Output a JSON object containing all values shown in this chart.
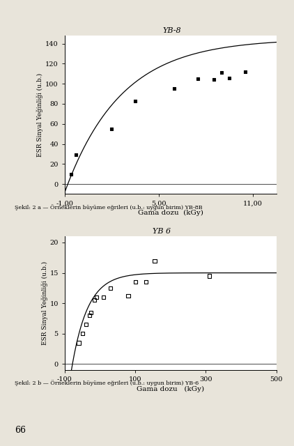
{
  "chart1": {
    "title": "YB-8",
    "xlabel": "Gama dozu  (kGy)",
    "ylabel": "ESR Sinyal Yeğinliği (u.b.)",
    "xlim": [
      -100,
      1250
    ],
    "ylim": [
      -10,
      148
    ],
    "xticks": [
      -100,
      500,
      1100
    ],
    "xticklabels": [
      "-1,00",
      "5,00",
      "11,00"
    ],
    "yticks": [
      0,
      20,
      40,
      60,
      80,
      100,
      120,
      140
    ],
    "scatter_x": [
      -60,
      -30,
      200,
      350,
      600,
      750,
      850,
      900,
      950,
      1050
    ],
    "scatter_y": [
      10,
      29,
      55,
      83,
      95,
      105,
      104,
      111,
      106,
      112
    ],
    "curve_A": 145,
    "curve_k": 0.0028,
    "curve_x0": -80,
    "line_color": "#000000",
    "scatter_color": "#000000",
    "marker": "s",
    "marker_filled": true,
    "bg_color": "#ffffff"
  },
  "chart2": {
    "title": "YB 6",
    "xlabel": "Gama dozu   (kGy)",
    "ylabel": "ESR Sinyal Yeğinliği (u.b.)",
    "xlim": [
      -100,
      500
    ],
    "ylim": [
      -1,
      21
    ],
    "xticks": [
      -100,
      100,
      300,
      500
    ],
    "xticklabels": [
      "-100",
      "100",
      "300",
      "500"
    ],
    "yticks": [
      0,
      5,
      10,
      15,
      20
    ],
    "scatter_x": [
      -60,
      -50,
      -40,
      -30,
      -25,
      -15,
      -10,
      10,
      30,
      80,
      100,
      130,
      155,
      310
    ],
    "scatter_y": [
      3.5,
      5,
      6.5,
      8,
      8.5,
      10.5,
      11,
      11,
      12.5,
      11.2,
      13.5,
      13.5,
      17,
      14.5
    ],
    "curve_A": 15,
    "curve_k": 0.022,
    "curve_x0": -78,
    "line_color": "#000000",
    "scatter_color": "#000000",
    "marker": "s",
    "marker_filled": false,
    "bg_color": "#ffffff"
  },
  "caption1": "Şekil: 2 a — Örneklerin büyüme eğrileri (u.b.: uygun birim) YB-8B",
  "caption2": "Şekil: 2 b — Örneklerin büyüme eğrileri (u.b.: uygun birim) YB-6",
  "page_number": "66",
  "page_bg": "#e8e4da"
}
